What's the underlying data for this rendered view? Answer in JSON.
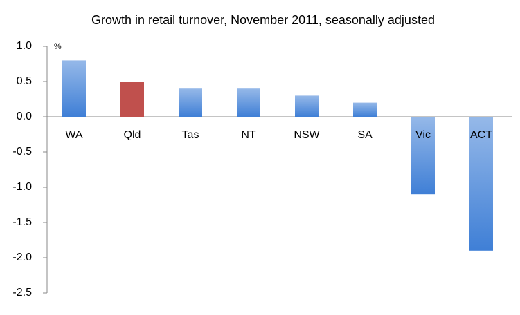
{
  "chart_data": {
    "type": "bar",
    "title": "Growth in retail turnover, November 2011, seasonally adjusted",
    "y_unit": "%",
    "categories": [
      "WA",
      "Qld",
      "Tas",
      "NT",
      "NSW",
      "SA",
      "Vic",
      "ACT"
    ],
    "values": [
      0.8,
      0.5,
      0.4,
      0.4,
      0.3,
      0.2,
      -1.1,
      -1.9
    ],
    "colors": [
      "#3f7fd6",
      "#c0504d",
      "#3f7fd6",
      "#3f7fd6",
      "#3f7fd6",
      "#3f7fd6",
      "#3f7fd6",
      "#3f7fd6"
    ],
    "ylim": [
      -2.5,
      1.0
    ],
    "yticks": [
      {
        "value": 1.0,
        "label": "1.0"
      },
      0.5,
      {
        "value": 0,
        "label": "0.0"
      },
      -0.5,
      {
        "value": -1.0,
        "label": "-1.0"
      },
      -1.5,
      {
        "value": -2.0,
        "label": "-2.0"
      },
      -2.5
    ],
    "grid": false
  }
}
